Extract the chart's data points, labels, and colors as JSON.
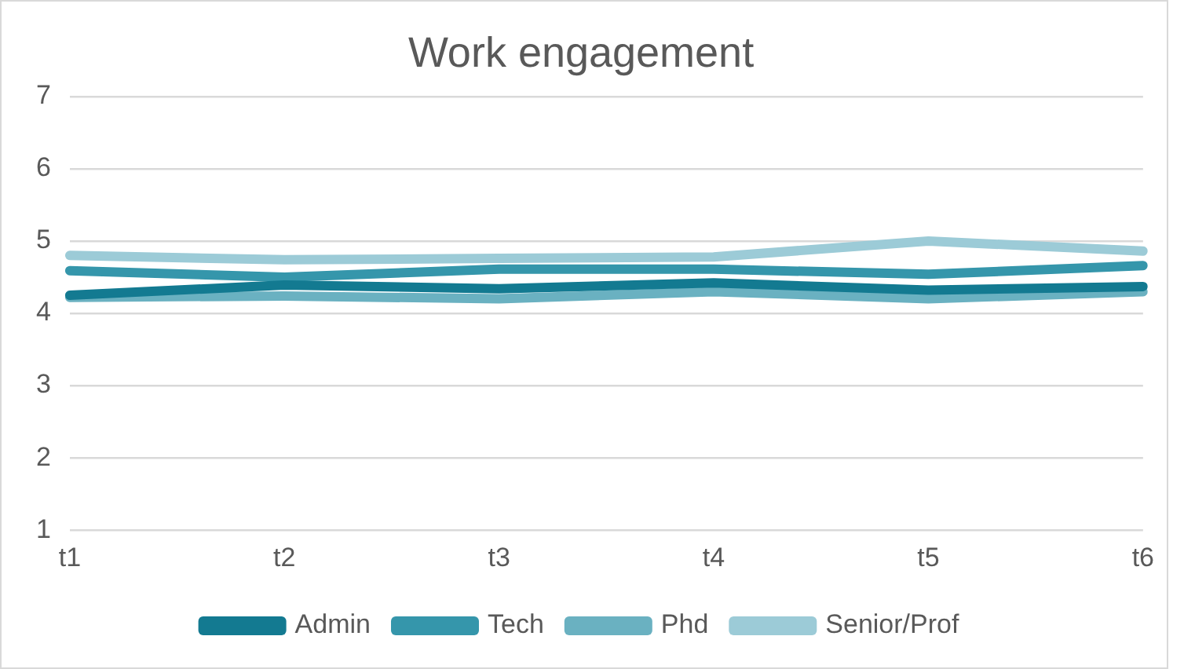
{
  "chart_data": {
    "type": "line",
    "title": "Work engagement",
    "categories": [
      "t1",
      "t2",
      "t3",
      "t4",
      "t5",
      "t6"
    ],
    "series": [
      {
        "name": "Admin",
        "color": "#137a91",
        "values": [
          4.25,
          4.39,
          4.34,
          4.42,
          4.32,
          4.37
        ]
      },
      {
        "name": "Tech",
        "color": "#3596ab",
        "values": [
          4.59,
          4.5,
          4.61,
          4.61,
          4.54,
          4.66
        ]
      },
      {
        "name": "Phd",
        "color": "#6ab1c1",
        "values": [
          4.22,
          4.24,
          4.2,
          4.3,
          4.2,
          4.3
        ]
      },
      {
        "name": "Senior/Prof",
        "color": "#9ccbd7",
        "values": [
          4.8,
          4.74,
          4.76,
          4.78,
          5.0,
          4.86
        ]
      }
    ],
    "ylim": [
      1,
      7
    ],
    "yticks": [
      1,
      2,
      3,
      4,
      5,
      6,
      7
    ],
    "grid": "y",
    "legend": "bottom",
    "marker": "none",
    "line_style": "solid"
  }
}
